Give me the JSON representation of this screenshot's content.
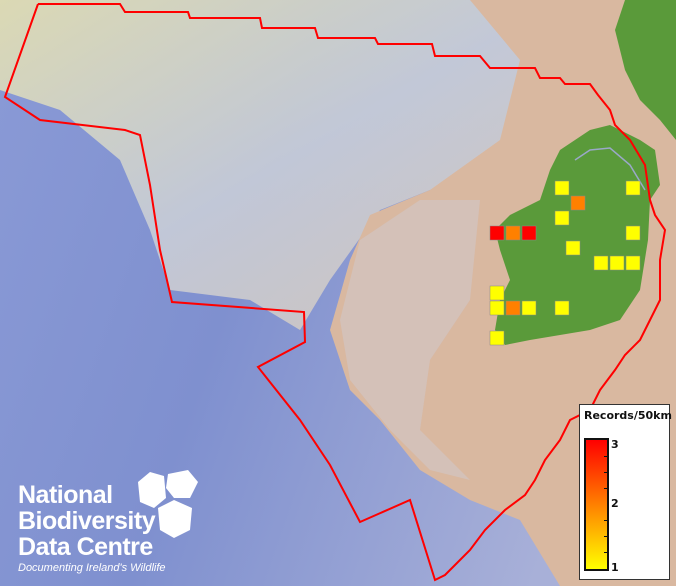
{
  "colors": {
    "boundary": "#ff0000",
    "land": "#5a9a3a",
    "sea_deep": "#7d8fd0",
    "shelf": "#e8dcb0",
    "low": "#ffff00",
    "mid": "#ff8000",
    "high": "#ff0000"
  },
  "legend": {
    "title": "Records/50km",
    "max_label": "3",
    "mid_label": "2",
    "min_label": "1",
    "range": [
      1,
      3
    ]
  },
  "logo": {
    "line1": "National",
    "line2": "Biodiversity",
    "line3": "Data Centre",
    "tagline": "Documenting Ireland's Wildlife"
  },
  "records": [
    1,
    1,
    2,
    1,
    3,
    2,
    3,
    1,
    1,
    1,
    1,
    1,
    1,
    1,
    2,
    1,
    1,
    1
  ]
}
